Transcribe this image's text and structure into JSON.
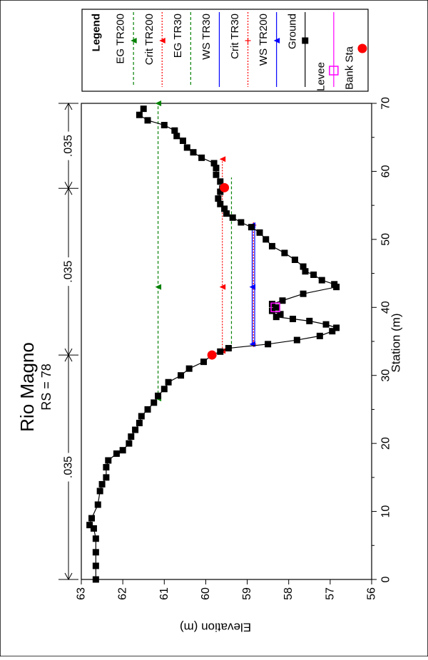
{
  "chart_data": {
    "type": "line",
    "title": "Rio Magno",
    "subtitle": "RS = 78",
    "xlabel": "Station (m)",
    "ylabel": "Elevation (m)",
    "xlim": [
      0,
      70
    ],
    "ylim": [
      56,
      63
    ],
    "xticks": [
      0,
      10,
      20,
      30,
      40,
      50,
      60,
      70
    ],
    "yticks": [
      56,
      57,
      58,
      59,
      60,
      61,
      62,
      63
    ],
    "orientation": "rotated 90 degrees clockwise",
    "manning_n": [
      {
        "label": ".035",
        "from": 0,
        "to": 33
      },
      {
        "label": ".035",
        "from": 33,
        "to": 57.5
      },
      {
        "label": ".035",
        "from": 57.5,
        "to": 70
      }
    ],
    "legend": {
      "title": "Legend",
      "entries": [
        "EG TR200",
        "Crit TR200",
        "EG TR30",
        "WS TR30",
        "Crit TR30",
        "WS TR200",
        "Ground",
        "Levee",
        "Bank Sta"
      ]
    },
    "series": [
      {
        "name": "EG TR200",
        "color": "#008000",
        "style": "dashed",
        "marker": "triangle",
        "x": [
          26.6,
          70
        ],
        "y": [
          61.15,
          61.15
        ],
        "marker_x": [
          26.6,
          43,
          70
        ]
      },
      {
        "name": "Crit TR200",
        "color": "#ff0000",
        "style": "dotted",
        "marker": "triangle",
        "x": [
          33.6,
          61.8
        ],
        "y": [
          59.6,
          59.6
        ],
        "marker_x": [
          33.6,
          43,
          61.8
        ]
      },
      {
        "name": "EG TR30",
        "color": "#008000",
        "style": "dashed",
        "marker": "none",
        "x": [
          33.9,
          59.1
        ],
        "y": [
          59.38,
          59.38
        ]
      },
      {
        "name": "WS TR30",
        "color": "#0000ff",
        "style": "solid",
        "marker": "none",
        "x": [
          34.6,
          52.1
        ],
        "y": [
          58.82,
          58.82
        ]
      },
      {
        "name": "Crit TR30",
        "color": "#ff0000",
        "style": "dotted",
        "marker": "plus",
        "x": [
          34.6,
          52.1
        ],
        "y": [
          58.85,
          58.85
        ]
      },
      {
        "name": "WS TR200",
        "color": "#0000ff",
        "style": "solid",
        "marker": "triangle",
        "x": [
          34.6,
          52.1
        ],
        "y": [
          58.88,
          58.88
        ],
        "marker_x": [
          34.6,
          43,
          52.1
        ]
      },
      {
        "name": "Ground",
        "color": "#000000",
        "style": "solid",
        "marker": "square",
        "x": [
          0,
          2,
          4,
          6,
          7.5,
          8,
          9,
          11,
          13,
          14,
          15,
          16.5,
          17.5,
          18.5,
          19,
          20,
          21,
          22,
          23,
          24,
          25,
          26,
          27,
          28,
          29,
          30,
          31,
          32,
          33,
          33.5,
          34,
          34.6,
          35.2,
          35.8,
          36.5,
          37,
          37.5,
          38,
          38.3,
          38.6,
          39,
          39.5,
          40,
          40.5,
          41,
          42,
          43,
          43.4,
          44,
          44.8,
          45.3,
          46,
          47,
          48,
          49,
          50,
          51,
          51.8,
          52.5,
          53.2,
          53.8,
          54.5,
          55.2,
          56,
          57,
          57.5,
          58.5,
          59.5,
          60.5,
          61.2,
          62,
          62.8,
          63.5,
          64.5,
          65.2,
          66,
          66.8,
          67.5,
          68.3,
          69.2
        ],
        "y": [
          62.65,
          62.65,
          62.65,
          62.65,
          62.7,
          62.8,
          62.75,
          62.6,
          62.55,
          62.5,
          62.4,
          62.4,
          62.35,
          62.15,
          62.0,
          61.85,
          61.8,
          61.7,
          61.6,
          61.55,
          61.4,
          61.25,
          61.15,
          61.0,
          60.9,
          60.6,
          60.4,
          60.05,
          59.85,
          59.65,
          59.45,
          58.5,
          57.8,
          57.25,
          56.95,
          56.85,
          57.1,
          57.5,
          57.9,
          58.3,
          58.2,
          58.4,
          58.3,
          58.4,
          58.15,
          57.65,
          56.85,
          56.9,
          57.2,
          57.4,
          57.6,
          57.65,
          57.85,
          58.1,
          58.4,
          58.55,
          58.7,
          58.9,
          59.15,
          59.35,
          59.5,
          59.55,
          59.65,
          59.7,
          59.65,
          59.6,
          59.65,
          59.75,
          59.75,
          59.8,
          60.1,
          60.3,
          60.45,
          60.55,
          60.7,
          60.75,
          61.0,
          61.4,
          61.6,
          61.5
        ]
      },
      {
        "name": "Levee",
        "color": "#ff00ff",
        "style": "solid",
        "marker": "open-square",
        "x": [
          40
        ],
        "y": [
          58.32
        ]
      },
      {
        "name": "Bank Sta",
        "color": "#ff0000",
        "style": "none",
        "marker": "filled-circle",
        "x": [
          33,
          57.6
        ],
        "y": [
          59.85,
          59.55
        ]
      }
    ]
  }
}
